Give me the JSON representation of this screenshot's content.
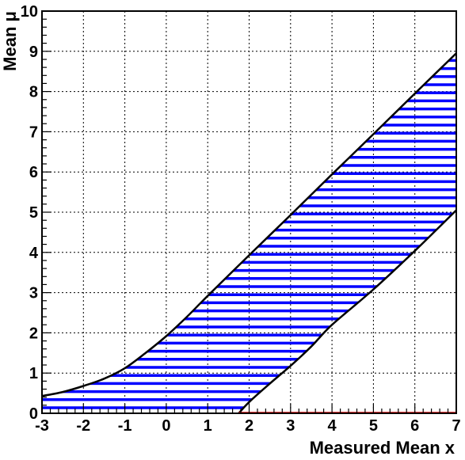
{
  "chart_data": {
    "type": "area",
    "title": "",
    "xlabel": "Measured Mean x",
    "ylabel": "Mean μ",
    "xlim": [
      -3,
      7
    ],
    "ylim": [
      0,
      10
    ],
    "x_ticks": [
      "-3",
      "-2",
      "-1",
      "0",
      "1",
      "2",
      "3",
      "4",
      "5",
      "6",
      "7"
    ],
    "y_ticks": [
      "0",
      "1",
      "2",
      "3",
      "4",
      "5",
      "6",
      "7",
      "8",
      "9",
      "10"
    ],
    "grid": true,
    "legend": "none",
    "fill_pattern": "horizontal-hatch",
    "series": [
      {
        "role": "upper-limit",
        "x": [
          -3,
          -2.5,
          -2,
          -1.5,
          -1,
          -0.5,
          0,
          0.5,
          1,
          2,
          3,
          4,
          5,
          6,
          7
        ],
        "y": [
          0.43,
          0.53,
          0.68,
          0.86,
          1.12,
          1.5,
          1.92,
          2.4,
          2.92,
          3.93,
          4.93,
          5.94,
          6.94,
          7.95,
          8.95
        ]
      },
      {
        "role": "lower-limit",
        "x": [
          1.75,
          2.0,
          2.5,
          3.0,
          3.5,
          4.0,
          5.0,
          6.0,
          7.0
        ],
        "y": [
          0.0,
          0.28,
          0.74,
          1.18,
          1.66,
          2.2,
          3.08,
          4.04,
          5.05
        ]
      },
      {
        "role": "floor",
        "x": [
          -3,
          1.75
        ],
        "y": [
          0,
          0
        ]
      }
    ],
    "colors": {
      "hatch": "#0000ff",
      "curve": "#000000",
      "grid": "#000000",
      "background": "#ffffff",
      "lower_clip": "#ff0000"
    }
  }
}
